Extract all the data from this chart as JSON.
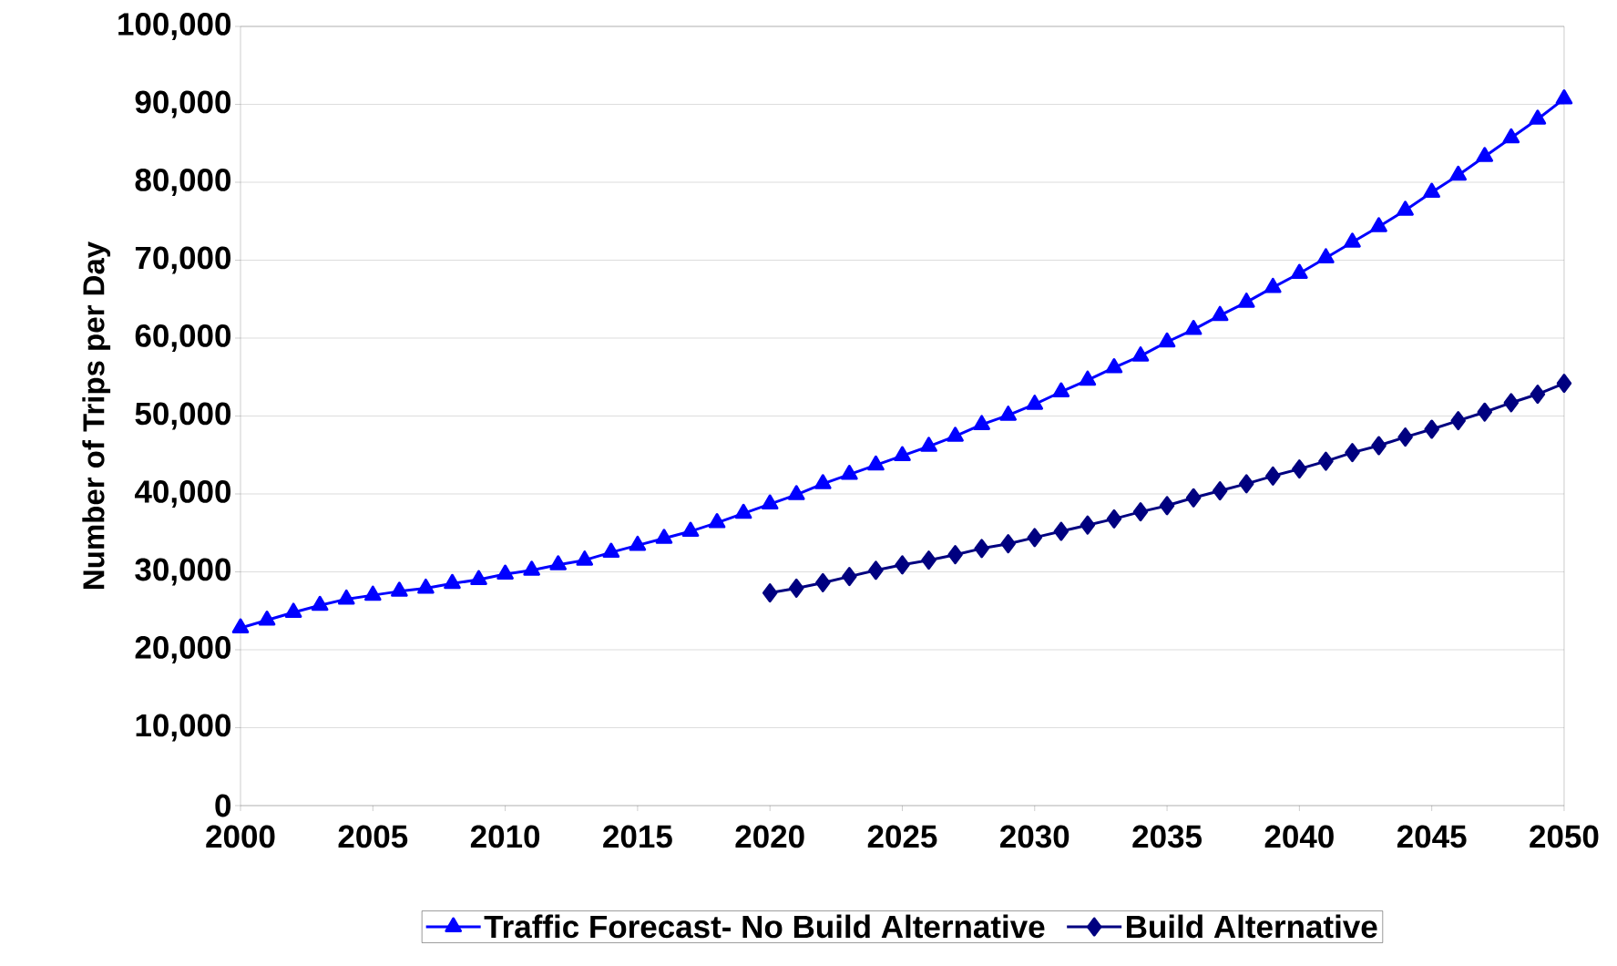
{
  "chart_data": {
    "type": "line",
    "ylabel": "Number of Trips per Day",
    "xlim": [
      2000,
      2050
    ],
    "xticks": [
      2000,
      2005,
      2010,
      2015,
      2020,
      2025,
      2030,
      2035,
      2040,
      2045,
      2050
    ],
    "ylim": [
      0,
      100000
    ],
    "yticks": [
      0,
      {
        "value": 10000,
        "label": "10,000"
      },
      {
        "value": 20000,
        "label": "20,000"
      },
      {
        "value": 30000,
        "label": "30,000"
      },
      {
        "value": 40000,
        "label": "40,000"
      },
      {
        "value": 50000,
        "label": "50,000"
      },
      {
        "value": 60000,
        "label": "60,000"
      },
      {
        "value": 70000,
        "label": "70,000"
      },
      {
        "value": 80000,
        "label": "80,000"
      },
      {
        "value": 90000,
        "label": "90,000"
      },
      {
        "value": 100000,
        "label": "100,000"
      }
    ],
    "grid": "y",
    "legend": "bottom",
    "series": [
      {
        "name": "Traffic Forecast- No Build Alternative",
        "color": "#0000ff",
        "marker": "triangle",
        "x": [
          2000,
          2001,
          2002,
          2003,
          2004,
          2005,
          2006,
          2007,
          2008,
          2009,
          2010,
          2011,
          2012,
          2013,
          2014,
          2015,
          2016,
          2017,
          2018,
          2019,
          2020,
          2021,
          2022,
          2023,
          2024,
          2025,
          2026,
          2027,
          2028,
          2029,
          2030,
          2031,
          2032,
          2033,
          2034,
          2035,
          2036,
          2037,
          2038,
          2039,
          2040,
          2041,
          2042,
          2043,
          2044,
          2045,
          2046,
          2047,
          2048,
          2049,
          2050
        ],
        "values": [
          22800,
          23800,
          24800,
          25700,
          26500,
          27000,
          27500,
          27900,
          28500,
          29000,
          29700,
          30200,
          30900,
          31500,
          32500,
          33400,
          34300,
          35200,
          36300,
          37500,
          38700,
          39900,
          41300,
          42500,
          43700,
          44900,
          46100,
          47400,
          48900,
          50100,
          51500,
          53100,
          54600,
          56200,
          57700,
          59500,
          61100,
          62900,
          64600,
          66500,
          68300,
          70300,
          72300,
          74300,
          76400,
          78700,
          80900,
          83300,
          85700,
          88100,
          90700
        ]
      },
      {
        "name": "Build Alternative",
        "color": "#000080",
        "marker": "diamond",
        "x": [
          2020,
          2021,
          2022,
          2023,
          2024,
          2025,
          2026,
          2027,
          2028,
          2029,
          2030,
          2031,
          2032,
          2033,
          2034,
          2035,
          2036,
          2037,
          2038,
          2039,
          2040,
          2041,
          2042,
          2043,
          2044,
          2045,
          2046,
          2047,
          2048,
          2049,
          2050
        ],
        "values": [
          27300,
          27900,
          28600,
          29400,
          30200,
          30900,
          31500,
          32200,
          33000,
          33600,
          34400,
          35200,
          36000,
          36800,
          37700,
          38500,
          39500,
          40400,
          41300,
          42300,
          43200,
          44200,
          45300,
          46200,
          47300,
          48300,
          49400,
          50500,
          51700,
          52800,
          54200
        ]
      }
    ]
  }
}
